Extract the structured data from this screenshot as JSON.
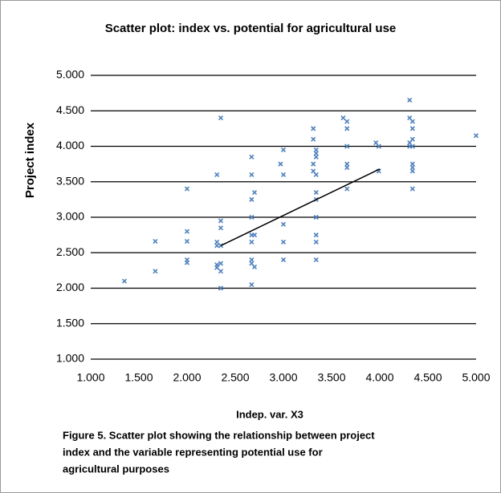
{
  "chart_data": {
    "type": "scatter",
    "title": "Scatter plot: index vs. potential for agricultural use",
    "x_label": "Indep. var. X3",
    "y_label": "Project index",
    "caption": [
      "Figure 5. Scatter plot showing the relationship between project",
      "index and the variable representing potential use for",
      "agricultural purposes"
    ],
    "series": [
      {
        "color": "#4f81bd",
        "x": [
          1.35,
          1.67,
          1.67,
          2.0,
          2.0,
          2.0,
          2.0,
          2.0,
          2.31,
          2.31,
          2.31,
          2.31,
          2.31,
          2.35,
          2.35,
          2.35,
          2.35,
          2.35,
          2.35,
          2.35,
          2.67,
          2.67,
          2.67,
          2.67,
          2.67,
          2.67,
          2.67,
          2.67,
          2.67,
          2.7,
          2.7,
          2.7,
          2.97,
          3.0,
          3.0,
          3.0,
          3.0,
          3.0,
          3.31,
          3.31,
          3.31,
          3.31,
          3.34,
          3.34,
          3.34,
          3.34,
          3.34,
          3.34,
          3.34,
          3.34,
          3.34,
          3.34,
          3.62,
          3.66,
          3.66,
          3.66,
          3.66,
          3.66,
          3.66,
          3.96,
          3.99,
          3.99,
          4.31,
          4.31,
          4.31,
          4.31,
          4.34,
          4.34,
          4.34,
          4.34,
          4.34,
          4.34,
          4.34,
          4.34,
          5.0
        ],
        "values": [
          2.1,
          2.66,
          2.24,
          3.4,
          2.8,
          2.66,
          2.4,
          2.36,
          3.6,
          2.65,
          2.6,
          2.33,
          2.29,
          4.4,
          2.95,
          2.85,
          2.6,
          2.35,
          2.24,
          2.0,
          3.85,
          3.6,
          3.25,
          3.0,
          2.75,
          2.65,
          2.4,
          2.35,
          2.05,
          3.35,
          2.75,
          2.3,
          3.75,
          3.95,
          3.6,
          2.9,
          2.65,
          2.4,
          4.25,
          4.1,
          3.75,
          3.65,
          3.95,
          3.85,
          3.9,
          3.6,
          3.35,
          3.25,
          3.0,
          2.75,
          2.65,
          2.4,
          4.4,
          4.35,
          4.25,
          4.0,
          3.75,
          3.7,
          3.4,
          4.05,
          4.0,
          3.65,
          4.65,
          4.4,
          4.05,
          4.0,
          4.35,
          4.25,
          4.1,
          4.0,
          3.75,
          3.7,
          3.65,
          3.4,
          4.15
        ]
      }
    ],
    "trendline": {
      "x": [
        2.35,
        4.0
      ],
      "values": [
        2.6,
        3.68
      ]
    },
    "xlim": [
      1,
      5
    ],
    "xticks": [
      {
        "value": 1,
        "label": "1.000"
      },
      {
        "value": 1.5,
        "label": "1.500"
      },
      {
        "value": 2,
        "label": "2.000"
      },
      {
        "value": 2.5,
        "label": "2.500"
      },
      {
        "value": 3,
        "label": "3.000"
      },
      {
        "value": 3.5,
        "label": "3.500"
      },
      {
        "value": 4,
        "label": "4.000"
      },
      {
        "value": 4.5,
        "label": "4.500"
      },
      {
        "value": 5,
        "label": "5.000"
      }
    ],
    "ylim": [
      1,
      5
    ],
    "yticks": [
      {
        "value": 1,
        "label": "1.000"
      },
      {
        "value": 1.5,
        "label": "1.500"
      },
      {
        "value": 2,
        "label": "2.000"
      },
      {
        "value": 2.5,
        "label": "2.500"
      },
      {
        "value": 3,
        "label": "3.000"
      },
      {
        "value": 3.5,
        "label": "3.500"
      },
      {
        "value": 4,
        "label": "4.000"
      },
      {
        "value": 4.5,
        "label": "4.500"
      },
      {
        "value": 5,
        "label": "5.000"
      }
    ],
    "grid": true
  }
}
